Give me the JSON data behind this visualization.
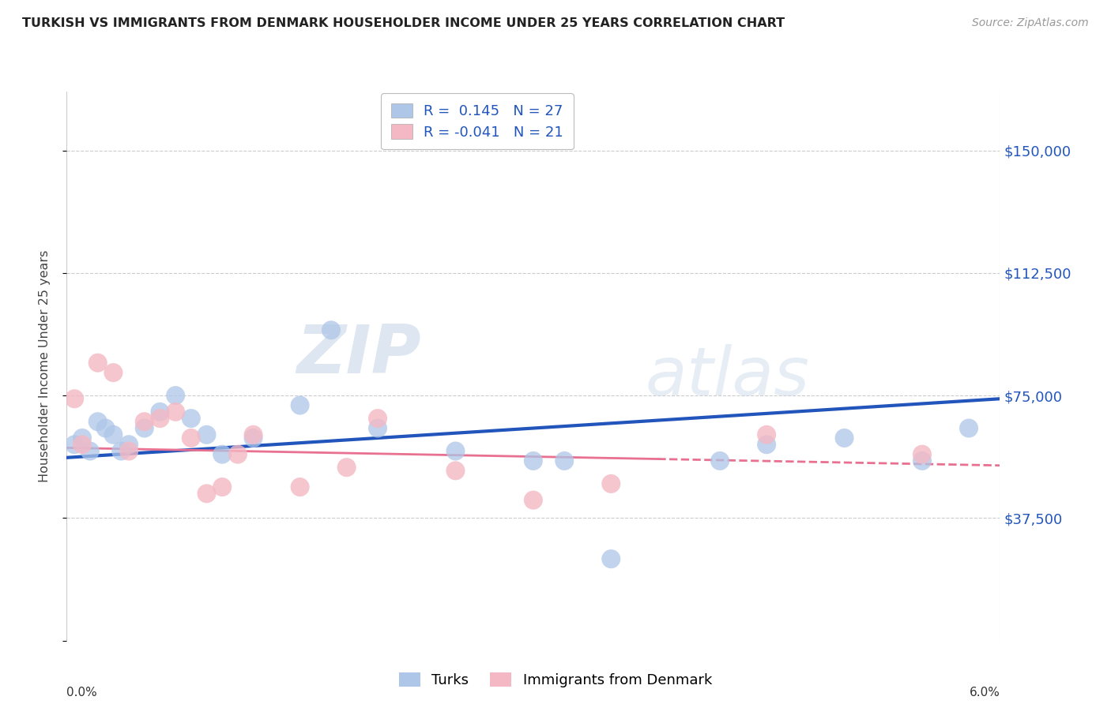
{
  "title": "TURKISH VS IMMIGRANTS FROM DENMARK HOUSEHOLDER INCOME UNDER 25 YEARS CORRELATION CHART",
  "source": "Source: ZipAtlas.com",
  "ylabel": "Householder Income Under 25 years",
  "yticks": [
    0,
    37500,
    75000,
    112500,
    150000
  ],
  "ytick_labels": [
    "",
    "$37,500",
    "$75,000",
    "$112,500",
    "$150,000"
  ],
  "xmin": 0.0,
  "xmax": 6.0,
  "ymin": 0,
  "ymax": 168000,
  "watermark_zip": "ZIP",
  "watermark_atlas": "atlas",
  "legend1_label": "Turks",
  "legend2_label": "Immigrants from Denmark",
  "r1": 0.145,
  "n1": 27,
  "r2": -0.041,
  "n2": 21,
  "color_blue": "#aec6e8",
  "color_pink": "#f4b8c4",
  "trendline_blue": "#2255bb",
  "trendline_pink": "#e87090",
  "blue_points_x": [
    0.05,
    0.1,
    0.15,
    0.2,
    0.25,
    0.3,
    0.35,
    0.4,
    0.5,
    0.6,
    0.7,
    0.8,
    0.9,
    1.0,
    1.2,
    1.5,
    1.7,
    2.0,
    2.5,
    3.0,
    3.2,
    3.5,
    4.2,
    4.5,
    5.0,
    5.5,
    5.8
  ],
  "blue_points_y": [
    60000,
    62000,
    58000,
    67000,
    65000,
    63000,
    58000,
    60000,
    65000,
    70000,
    75000,
    68000,
    63000,
    57000,
    62000,
    72000,
    95000,
    65000,
    58000,
    55000,
    55000,
    25000,
    55000,
    60000,
    62000,
    55000,
    65000
  ],
  "pink_points_x": [
    0.05,
    0.1,
    0.2,
    0.3,
    0.4,
    0.5,
    0.6,
    0.7,
    0.8,
    0.9,
    1.0,
    1.1,
    1.2,
    1.5,
    1.8,
    2.0,
    2.5,
    3.0,
    3.5,
    4.5,
    5.5
  ],
  "pink_points_y": [
    74000,
    60000,
    85000,
    82000,
    58000,
    67000,
    68000,
    70000,
    62000,
    45000,
    47000,
    57000,
    63000,
    47000,
    53000,
    68000,
    52000,
    43000,
    48000,
    63000,
    57000
  ],
  "blue_bubble_size": 300,
  "pink_bubble_size": 300,
  "blue_intercept": 56000,
  "blue_slope": 3000,
  "pink_intercept": 59000,
  "pink_slope": -900,
  "pink_solid_end": 3.8
}
